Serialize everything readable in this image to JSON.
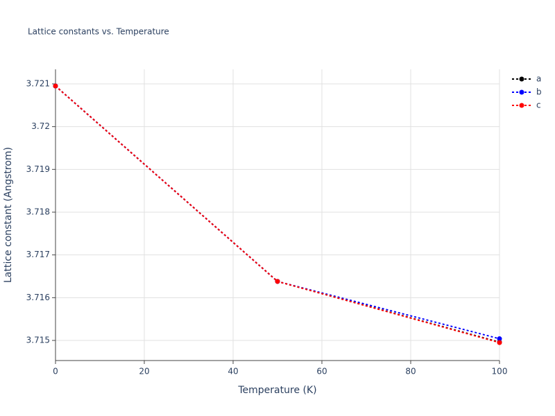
{
  "chart_data": {
    "type": "line",
    "title": "Lattice constants vs. Temperature",
    "x_label": "Temperature (K)",
    "y_label": "Lattice constant (Angstrom)",
    "x": [
      0,
      50,
      100
    ],
    "series": [
      {
        "name": "a",
        "color": "#000000",
        "values": [
          3.72095,
          3.71638,
          3.71496
        ]
      },
      {
        "name": "b",
        "color": "#0000ff",
        "values": [
          3.72095,
          3.71638,
          3.71504
        ]
      },
      {
        "name": "c",
        "color": "#ff0000",
        "values": [
          3.72095,
          3.71638,
          3.71495
        ]
      }
    ],
    "xlim": [
      0,
      100
    ],
    "xticks": [
      0,
      20,
      40,
      60,
      80,
      100
    ],
    "ylim": [
      3.71453,
      3.72134
    ],
    "yticks": [
      3.715,
      3.716,
      3.717,
      3.718,
      3.719,
      3.72,
      3.721
    ],
    "grid": true,
    "line_dash": "dot",
    "legend": "top-right"
  }
}
